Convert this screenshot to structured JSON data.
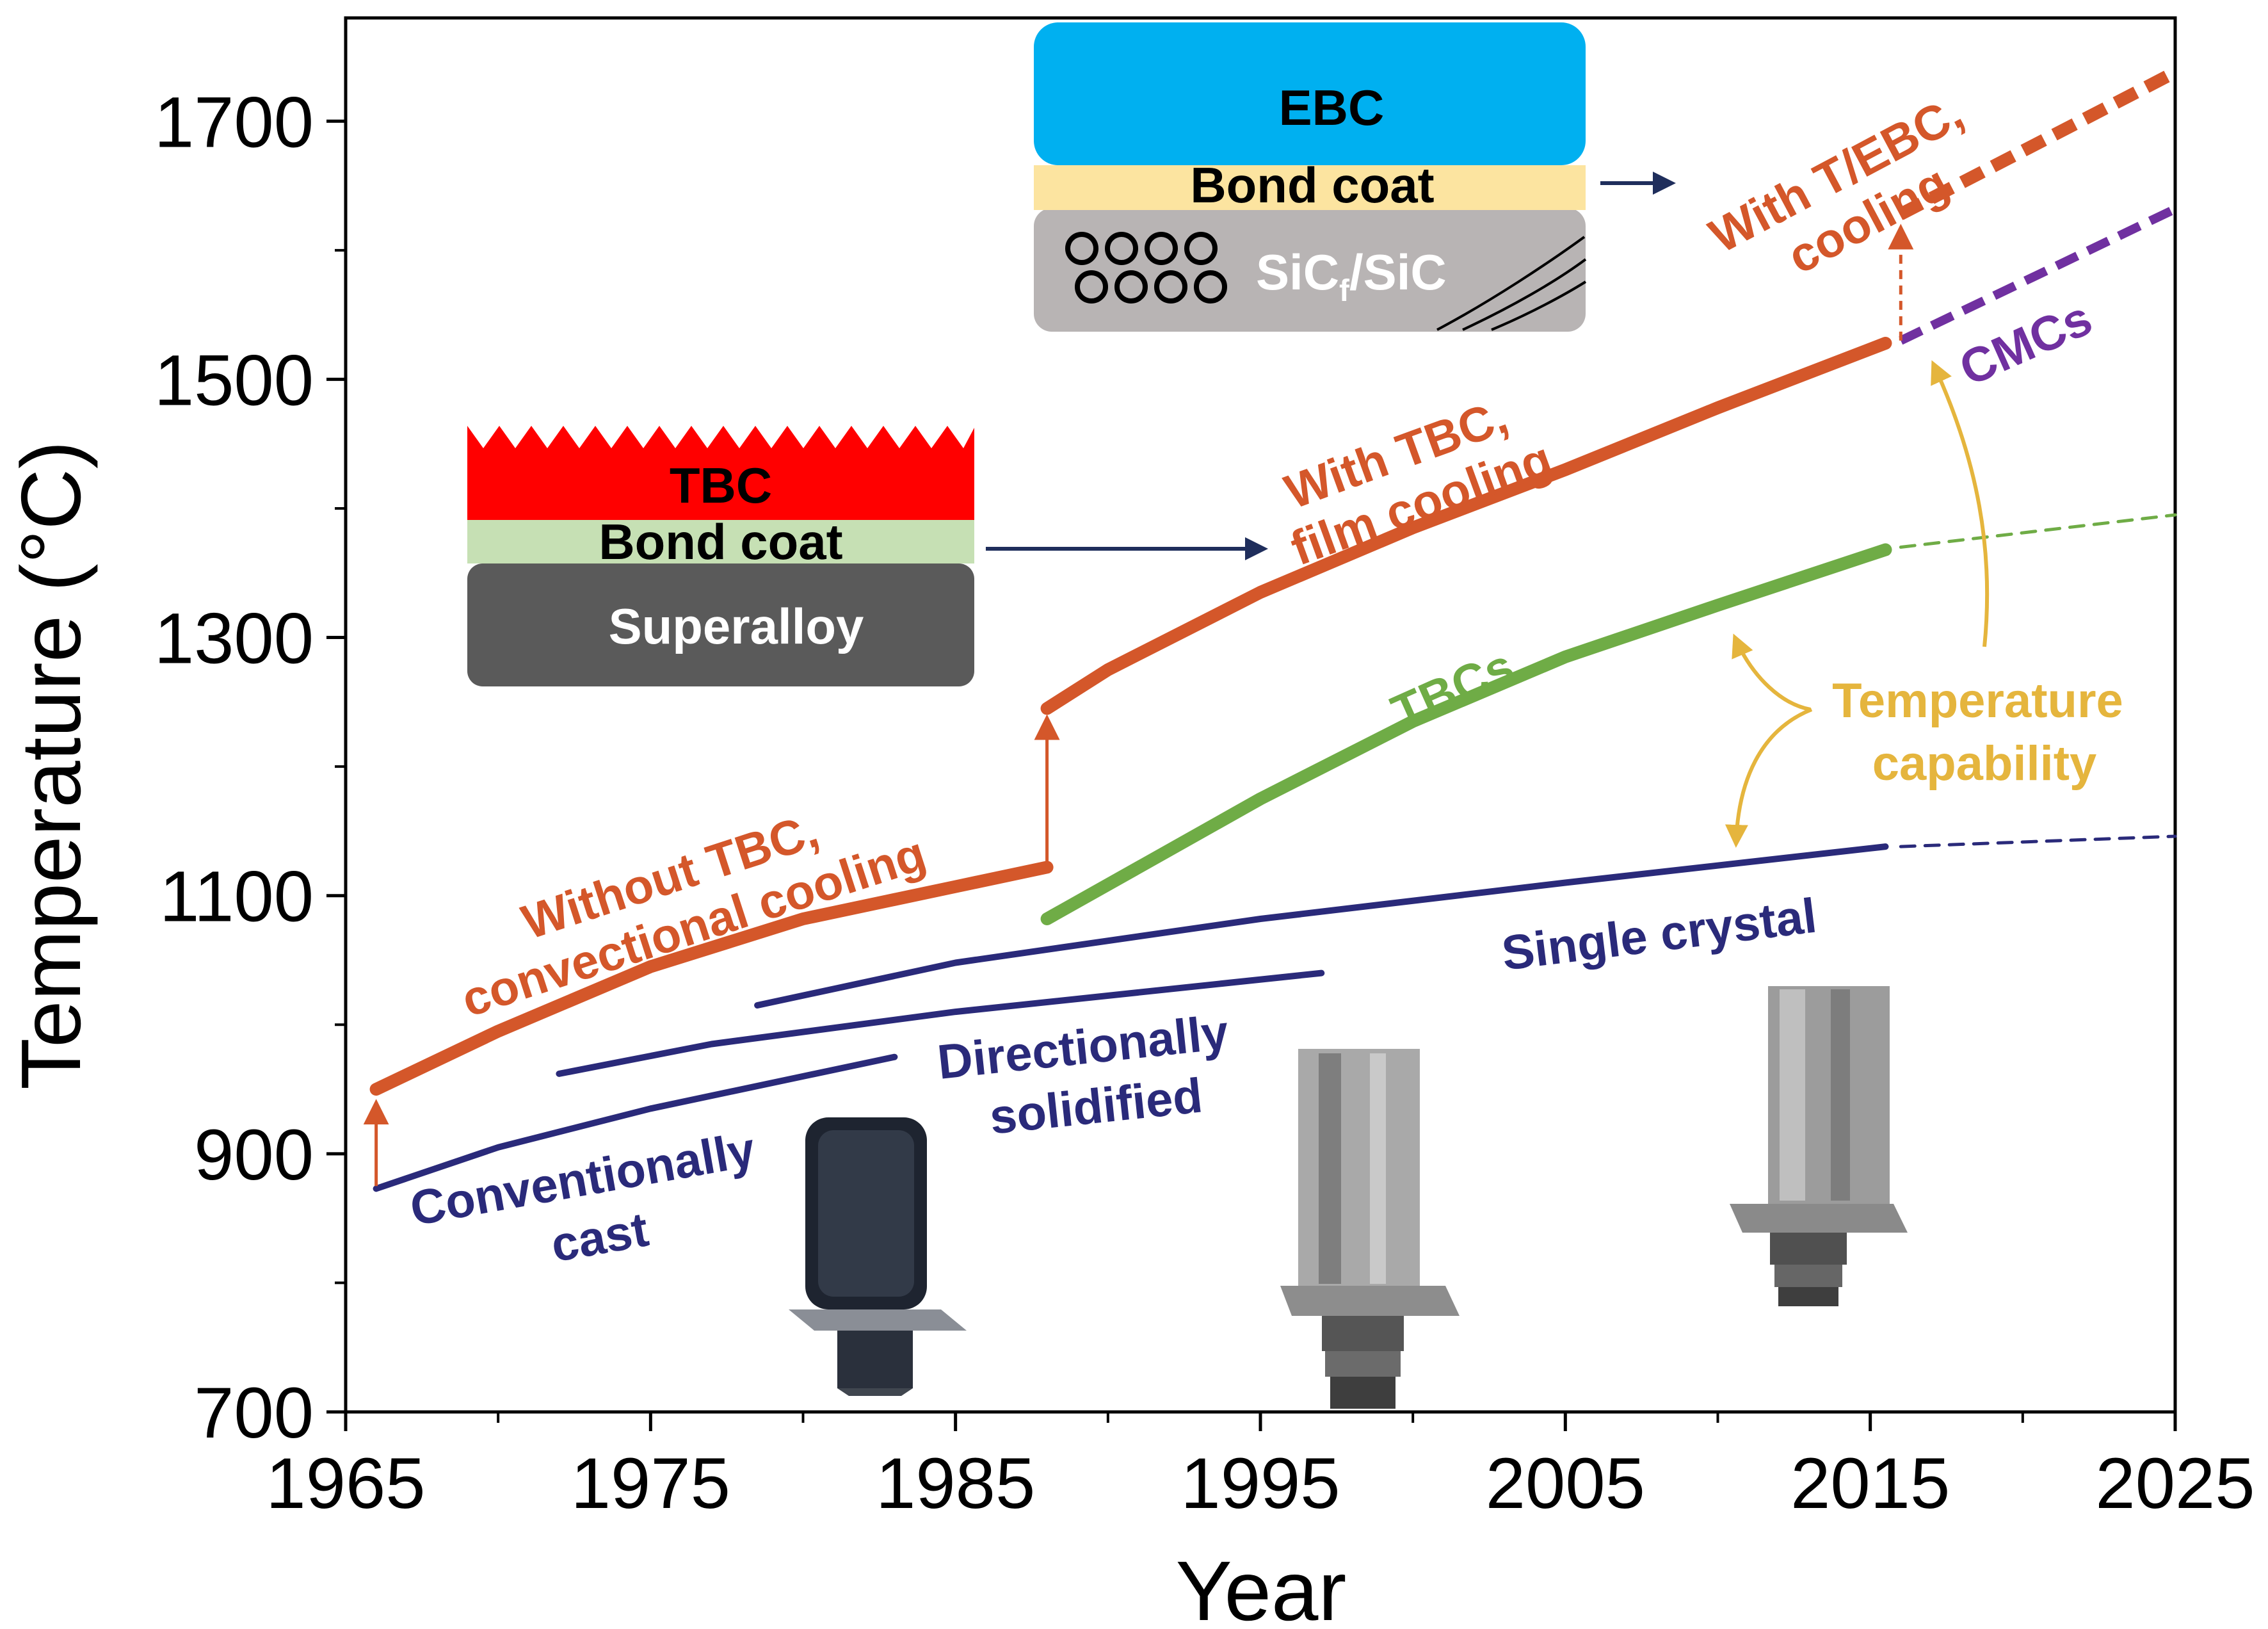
{
  "chart_data": {
    "type": "line",
    "title": "",
    "xlabel": "Year",
    "ylabel": "Temperature (°C)",
    "xlim": [
      1965,
      2025
    ],
    "ylim": [
      700,
      1780
    ],
    "x_ticks": [
      1965,
      1975,
      1985,
      1995,
      2005,
      2015,
      2025
    ],
    "y_ticks": [
      700,
      900,
      1100,
      1300,
      1500,
      1700
    ],
    "grid": false,
    "legend": "none",
    "colors": {
      "orange": "#D4572A",
      "green": "#6FAC46",
      "navy": "#2A2A7A",
      "purple": "#7030A0",
      "gold": "#E5B53D",
      "arrow_navy": "#1F2E5C",
      "ebc_blue": "#00B0F0",
      "bond_yellow": "#FCE4A0",
      "sic_gray": "#B8B4B4",
      "tbc_red": "#FF0000",
      "bond_green": "#C6E0B4",
      "superalloy_gray": "#5A5A5A"
    },
    "series": [
      {
        "id": "without-tbc",
        "color": "#D4572A",
        "style": "solid",
        "width": 20,
        "points": [
          [
            1966,
            950
          ],
          [
            1970,
            995
          ],
          [
            1975,
            1045
          ],
          [
            1980,
            1082
          ],
          [
            1985,
            1107
          ],
          [
            1988,
            1122
          ]
        ]
      },
      {
        "id": "with-tbc",
        "color": "#D4572A",
        "style": "solid",
        "width": 20,
        "points": [
          [
            1988,
            1245
          ],
          [
            1990,
            1275
          ],
          [
            1995,
            1335
          ],
          [
            2000,
            1385
          ],
          [
            2005,
            1430
          ],
          [
            2010,
            1478
          ],
          [
            2015.5,
            1528
          ]
        ]
      },
      {
        "id": "with-tebc",
        "color": "#D4572A",
        "style": "dotted",
        "width": 20,
        "points": [
          [
            2016,
            1628
          ],
          [
            2025,
            1738
          ]
        ]
      },
      {
        "id": "cmcs",
        "color": "#7030A0",
        "style": "dotted",
        "width": 14,
        "points": [
          [
            2016,
            1530
          ],
          [
            2025,
            1632
          ]
        ]
      },
      {
        "id": "tbcs",
        "color": "#6FAC46",
        "style": "solid",
        "width": 20,
        "points": [
          [
            1988,
            1082
          ],
          [
            1995,
            1175
          ],
          [
            2000,
            1235
          ],
          [
            2005,
            1285
          ],
          [
            2010,
            1325
          ],
          [
            2015.5,
            1368
          ]
        ]
      },
      {
        "id": "tbcs-projection",
        "color": "#6FAC46",
        "style": "dashed",
        "width": 5,
        "points": [
          [
            2016,
            1370
          ],
          [
            2025,
            1395
          ]
        ]
      },
      {
        "id": "conventionally-cast",
        "color": "#2A2A7A",
        "style": "solid",
        "width": 10,
        "points": [
          [
            1966,
            873
          ],
          [
            1970,
            905
          ],
          [
            1975,
            935
          ],
          [
            1980,
            960
          ],
          [
            1983,
            975
          ]
        ]
      },
      {
        "id": "directionally-solidified",
        "color": "#2A2A7A",
        "style": "solid",
        "width": 10,
        "points": [
          [
            1972,
            962
          ],
          [
            1977,
            985
          ],
          [
            1985,
            1010
          ],
          [
            1997,
            1040
          ]
        ]
      },
      {
        "id": "single-crystal",
        "color": "#2A2A7A",
        "style": "solid",
        "width": 10,
        "points": [
          [
            1978.5,
            1015
          ],
          [
            1985,
            1048
          ],
          [
            1995,
            1082
          ],
          [
            2005,
            1110
          ],
          [
            2015.5,
            1138
          ]
        ]
      },
      {
        "id": "single-crystal-projection",
        "color": "#2A2A7A",
        "style": "dashed",
        "width": 5,
        "points": [
          [
            2016,
            1138
          ],
          [
            2025,
            1146
          ]
        ]
      }
    ],
    "vertical_arrows": [
      {
        "id": "arrow-1966",
        "x": 1966,
        "from": 875,
        "to": 940,
        "color": "#D4572A",
        "style": "solid"
      },
      {
        "id": "arrow-1988",
        "x": 1988,
        "from": 1122,
        "to": 1238,
        "color": "#D4572A",
        "style": "solid"
      },
      {
        "id": "arrow-2016",
        "x": 2016,
        "from": 1530,
        "to": 1618,
        "color": "#D4572A",
        "style": "dashed"
      }
    ],
    "annotations": [
      {
        "id": "without-tbc-label",
        "lines": [
          "Without TBC,",
          "convectional cooling"
        ],
        "color": "#D4572A"
      },
      {
        "id": "with-tbc-label",
        "lines": [
          "With TBC,",
          "film cooling"
        ],
        "color": "#D4572A"
      },
      {
        "id": "with-tebc-label",
        "lines": [
          "With T/EBC,",
          "cooling"
        ],
        "color": "#D4572A"
      },
      {
        "id": "cmcs-label",
        "lines": [
          "CMCs"
        ],
        "color": "#7030A0"
      },
      {
        "id": "tbcs-label",
        "lines": [
          "TBCs"
        ],
        "color": "#6FAC46"
      },
      {
        "id": "temperature-capability-label",
        "lines": [
          "Temperature",
          "capability"
        ],
        "color": "#E5B53D"
      },
      {
        "id": "single-crystal-label",
        "lines": [
          "Single crystal"
        ],
        "color": "#2A2A7A"
      },
      {
        "id": "directionally-solidified-label",
        "lines": [
          "Directionally",
          "solidified"
        ],
        "color": "#2A2A7A"
      },
      {
        "id": "conventionally-cast-label",
        "lines": [
          "Conventionally",
          "cast"
        ],
        "color": "#2A2A7A"
      }
    ],
    "inset_tbc": {
      "tbc": "TBC",
      "bond_coat": "Bond coat",
      "superalloy": "Superalloy"
    },
    "inset_ebc": {
      "ebc": "EBC",
      "bond_coat": "Bond coat",
      "sic_main": "SiC",
      "sic_sub": "f",
      "sic_tail": "/SiC"
    }
  }
}
